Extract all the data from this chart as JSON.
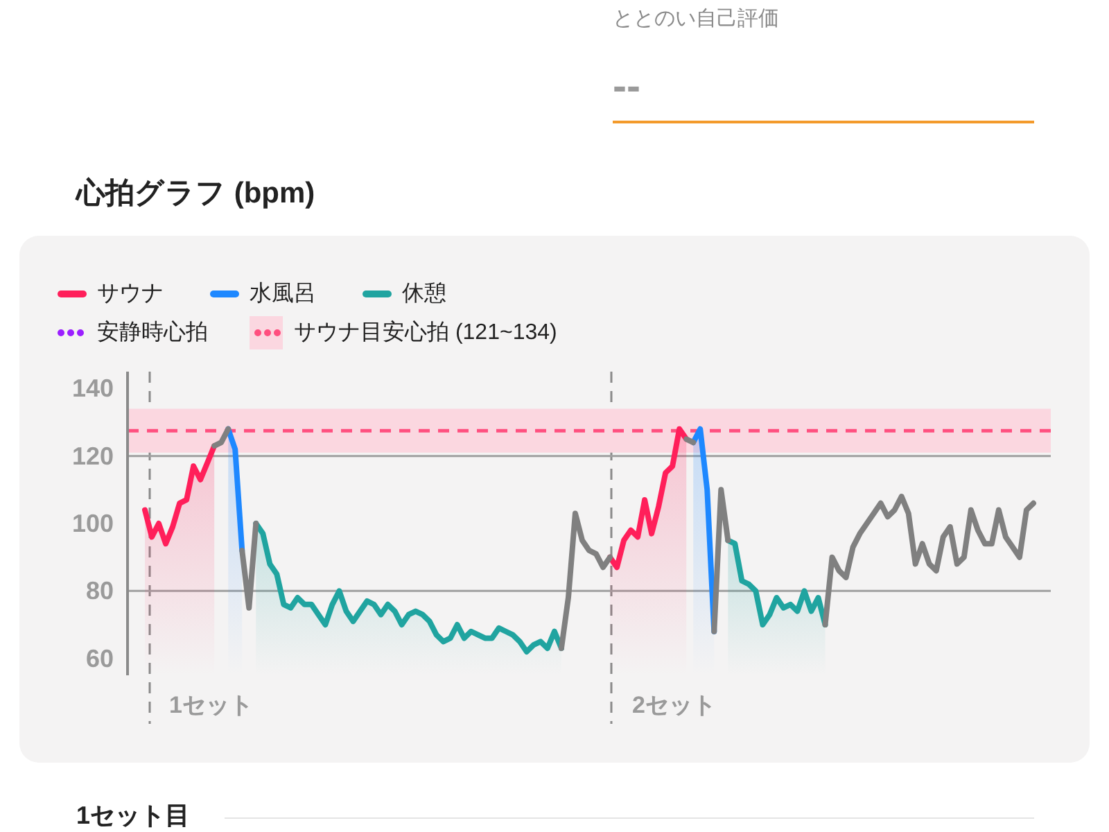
{
  "chart_data": {
    "type": "line",
    "title": "心拍グラフ (bpm)",
    "annotations": [
      "ととのい自己評価",
      "--",
      "1セット目",
      "1セット",
      "2セット"
    ],
    "categories": [
      null,
      null,
      null,
      null,
      null,
      null,
      null,
      null,
      null,
      null,
      null,
      null,
      null,
      null,
      null,
      null,
      null,
      null,
      null,
      null,
      null,
      null,
      null,
      null,
      null,
      null,
      null,
      null,
      null,
      null,
      null,
      null,
      null,
      null,
      null,
      null,
      null,
      null,
      null,
      null,
      null,
      null,
      null,
      null,
      null,
      null,
      null,
      null,
      null,
      null,
      null,
      null,
      null,
      null,
      null,
      null,
      null,
      null,
      null,
      null,
      null,
      null,
      null,
      null,
      null,
      null,
      null,
      null,
      null,
      null,
      null,
      null,
      null,
      null,
      null,
      null,
      null,
      null,
      null,
      null,
      null,
      null,
      null,
      null,
      null,
      null,
      null,
      null,
      null,
      null,
      null,
      null,
      null,
      null,
      null,
      null,
      null,
      null,
      null,
      null,
      null,
      null,
      null,
      null,
      null,
      null,
      null,
      null,
      null,
      null,
      null,
      null,
      null,
      null,
      null,
      null,
      null,
      null,
      null,
      null,
      null,
      null,
      null,
      null,
      null,
      null,
      null,
      null,
      null,
      null,
      null,
      null,
      null
    ],
    "series": [
      {
        "name": "サウナ",
        "type": "area",
        "color": "#ff1f5a",
        "values": [
          null,
          null,
          104,
          96,
          100,
          94,
          99,
          106,
          107,
          117,
          113,
          118,
          123,
          null,
          null,
          null,
          null,
          null,
          null,
          null,
          null,
          null,
          null,
          null,
          null,
          null,
          null,
          null,
          null,
          null,
          null,
          null,
          null,
          null,
          null,
          null,
          null,
          null,
          null,
          null,
          null,
          null,
          null,
          null,
          null,
          null,
          null,
          null,
          null,
          null,
          null,
          null,
          null,
          null,
          null,
          null,
          null,
          null,
          null,
          null,
          null,
          null,
          null,
          null,
          null,
          null,
          null,
          null,
          null,
          90,
          87,
          95,
          98,
          96,
          107,
          97,
          105,
          115,
          117,
          128,
          125,
          null,
          null,
          null,
          null,
          null,
          null,
          null,
          null,
          null,
          null,
          null,
          null,
          null,
          null,
          null,
          null,
          null,
          null,
          null,
          null,
          null,
          null,
          null,
          null,
          null,
          null,
          null,
          null,
          null,
          null,
          null,
          null,
          null,
          null,
          null,
          null,
          null,
          null,
          null,
          null,
          null,
          null,
          null,
          null,
          null,
          null,
          null,
          null,
          null,
          null,
          null,
          null
        ]
      },
      {
        "name": "水風呂",
        "type": "area",
        "color": "#1e88ff",
        "values": [
          null,
          null,
          null,
          null,
          null,
          null,
          null,
          null,
          null,
          null,
          null,
          null,
          null,
          null,
          128,
          122,
          92,
          null,
          null,
          null,
          null,
          null,
          null,
          null,
          null,
          null,
          null,
          null,
          null,
          null,
          null,
          null,
          null,
          null,
          null,
          null,
          null,
          null,
          null,
          null,
          null,
          null,
          null,
          null,
          null,
          null,
          null,
          null,
          null,
          null,
          null,
          null,
          null,
          null,
          null,
          null,
          null,
          null,
          null,
          null,
          null,
          null,
          null,
          null,
          null,
          null,
          null,
          null,
          null,
          null,
          null,
          null,
          null,
          null,
          null,
          null,
          null,
          null,
          null,
          null,
          null,
          124,
          128,
          110,
          68,
          null,
          null,
          null,
          null,
          null,
          null,
          null,
          null,
          null,
          null,
          null,
          null,
          null,
          null,
          null,
          null,
          null,
          null,
          null,
          null,
          null,
          null,
          null,
          null,
          null,
          null,
          null,
          null,
          null,
          null,
          null,
          null,
          null,
          null,
          null,
          null,
          null,
          null,
          null,
          null,
          null,
          null,
          null,
          null,
          null,
          null,
          null,
          null
        ]
      },
      {
        "name": "休憩",
        "type": "area",
        "color": "#20a4a0",
        "values": [
          null,
          null,
          null,
          null,
          null,
          null,
          null,
          null,
          null,
          null,
          null,
          null,
          null,
          null,
          null,
          null,
          null,
          null,
          100,
          97,
          88,
          85,
          76,
          75,
          78,
          76,
          76,
          73,
          70,
          76,
          80,
          74,
          71,
          74,
          77,
          76,
          73,
          76,
          74,
          70,
          73,
          74,
          73,
          71,
          67,
          65,
          66,
          70,
          66,
          68,
          67,
          66,
          66,
          69,
          68,
          67,
          65,
          62,
          64,
          65,
          63,
          68,
          63,
          null,
          null,
          null,
          null,
          null,
          null,
          null,
          null,
          null,
          null,
          null,
          null,
          null,
          null,
          null,
          null,
          null,
          null,
          null,
          null,
          null,
          null,
          null,
          95,
          94,
          83,
          82,
          80,
          70,
          73,
          78,
          75,
          76,
          74,
          80,
          74,
          78,
          70,
          null,
          null,
          null,
          null,
          null,
          null,
          null,
          null,
          null,
          null,
          null,
          null,
          null,
          null,
          null,
          null,
          null,
          null,
          null,
          null,
          null,
          null,
          null,
          null,
          null,
          null,
          null,
          null,
          null,
          null,
          null,
          null
        ]
      },
      {
        "name": "安静時心拍",
        "color": "#9b1fff",
        "line_style": "dotted",
        "values": [
          null,
          null,
          null,
          null,
          null,
          null,
          null,
          null,
          null,
          null,
          null,
          null,
          null,
          null,
          null,
          null,
          null,
          null,
          null,
          null,
          null,
          null,
          null,
          null,
          null,
          null,
          null,
          null,
          null,
          null,
          null,
          null,
          null,
          null,
          null,
          null,
          null,
          null,
          null,
          null,
          null,
          null,
          null,
          null,
          null,
          null,
          null,
          null,
          null,
          null,
          null,
          null,
          null,
          null,
          null,
          null,
          null,
          null,
          null,
          null,
          null,
          null,
          null,
          null,
          null,
          null,
          null,
          null,
          null,
          null,
          null,
          null,
          null,
          null,
          null,
          null,
          null,
          null,
          null,
          null,
          null,
          null,
          null,
          null,
          null,
          null,
          null,
          null,
          null,
          null,
          null,
          null,
          null,
          null,
          null,
          null,
          null,
          null,
          null,
          null,
          null,
          null,
          null,
          null,
          null,
          null,
          null,
          null,
          null,
          null,
          null,
          null,
          null,
          null,
          null,
          null,
          null,
          null,
          null,
          null,
          null,
          null,
          null,
          null,
          null,
          null,
          null,
          null,
          null,
          null,
          null,
          null,
          null
        ]
      },
      {
        "color": "#808080",
        "values": [
          null,
          null,
          null,
          null,
          null,
          null,
          null,
          null,
          null,
          null,
          null,
          null,
          123,
          124,
          128,
          null,
          92,
          75,
          100,
          null,
          null,
          null,
          null,
          null,
          null,
          null,
          null,
          null,
          null,
          null,
          null,
          null,
          null,
          null,
          null,
          null,
          null,
          null,
          null,
          null,
          null,
          null,
          null,
          null,
          null,
          null,
          null,
          null,
          null,
          null,
          null,
          null,
          null,
          null,
          null,
          null,
          null,
          null,
          null,
          null,
          null,
          null,
          63,
          78,
          103,
          95,
          92,
          91,
          87,
          90,
          null,
          null,
          null,
          null,
          null,
          null,
          null,
          null,
          null,
          null,
          125,
          124,
          null,
          null,
          68,
          110,
          95,
          null,
          null,
          null,
          null,
          null,
          null,
          null,
          null,
          null,
          null,
          null,
          null,
          null,
          70,
          90,
          86,
          84,
          93,
          97,
          100,
          103,
          106,
          102,
          104,
          108,
          103,
          88,
          94,
          88,
          86,
          96,
          99,
          88,
          90,
          104,
          98,
          94,
          94,
          104,
          96,
          93,
          90,
          104,
          106,
          null,
          null
        ]
      }
    ],
    "ylim": [
      55,
      145
    ],
    "yticks": [
      60,
      80,
      100,
      120,
      140
    ],
    "ref_lines": [
      {
        "axis": "y",
        "value": 80,
        "color": "#a0a0a0",
        "line_style": "solid"
      },
      {
        "axis": "y",
        "value": 120,
        "color": "#a0a0a0",
        "line_style": "solid"
      },
      {
        "axis": "y",
        "value": 127.5,
        "color": "#ff4f7f",
        "line_style": "dashed",
        "label": "サウナ目安心拍 (121~134)"
      }
    ],
    "bands": [
      {
        "axis": "y",
        "from": 121,
        "to": 134,
        "color": "#fbd7e0"
      }
    ],
    "legend": "top left",
    "grid": false,
    "marker": "none"
  }
}
